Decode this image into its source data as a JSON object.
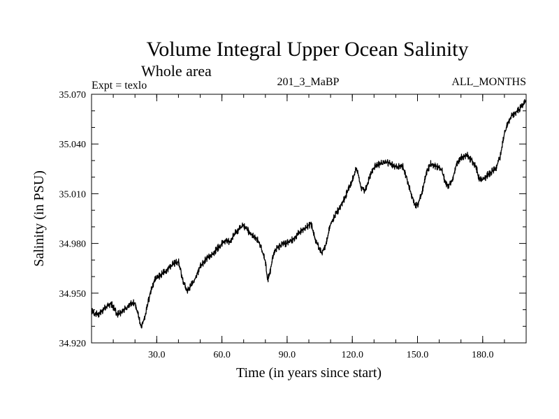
{
  "chart_data": {
    "type": "line",
    "title": "Volume Integral Upper Ocean Salinity",
    "subtitle": "Whole area",
    "annotations": {
      "left": "Expt = texlo",
      "center": "201_3_MaBP",
      "right": "ALL_MONTHS"
    },
    "xlabel": "Time (in years since start)",
    "ylabel": "Salinity (in PSU)",
    "xlim": [
      0,
      200
    ],
    "ylim": [
      34.92,
      35.07
    ],
    "x_ticks": [
      30,
      60,
      90,
      120,
      150,
      180
    ],
    "x_tick_labels": [
      "30.0",
      "60.0",
      "90.0",
      "120.0",
      "150.0",
      "180.0"
    ],
    "y_ticks": [
      34.92,
      34.95,
      34.98,
      35.01,
      35.04,
      35.07
    ],
    "y_tick_labels": [
      "34.920",
      "34.950",
      "34.980",
      "35.010",
      "35.040",
      "35.070"
    ],
    "grid": false,
    "noise_amplitude": 0.0022,
    "series": [
      {
        "name": "salinity",
        "x": [
          0,
          3,
          6,
          9,
          12,
          15,
          18,
          20,
          22,
          23,
          25,
          27,
          29,
          31,
          33,
          36,
          38,
          40,
          42,
          44,
          47,
          50,
          53,
          56,
          58,
          60,
          62,
          64,
          66,
          68,
          70,
          73,
          76,
          78,
          80,
          81,
          82,
          84,
          86,
          88,
          90,
          93,
          96,
          99,
          101,
          103,
          105,
          106,
          108,
          110,
          113,
          116,
          118,
          120,
          122,
          123,
          124,
          126,
          128,
          130,
          133,
          136,
          139,
          141,
          143,
          145,
          147,
          149,
          150,
          152,
          154,
          156,
          158,
          161,
          163,
          164,
          166,
          168,
          170,
          173,
          175,
          177,
          178,
          180,
          182,
          184,
          186,
          188,
          190,
          192,
          194,
          196,
          198,
          200
        ],
        "values": [
          34.939,
          34.937,
          34.941,
          34.944,
          34.937,
          34.94,
          34.944,
          34.944,
          34.934,
          34.929,
          34.938,
          34.95,
          34.958,
          34.96,
          34.962,
          34.966,
          34.968,
          34.969,
          34.958,
          34.951,
          34.957,
          34.966,
          34.971,
          34.974,
          34.977,
          34.98,
          34.982,
          34.981,
          34.986,
          34.989,
          34.991,
          34.986,
          34.983,
          34.978,
          34.969,
          34.958,
          34.962,
          34.975,
          34.978,
          34.98,
          34.98,
          34.983,
          34.987,
          34.99,
          34.992,
          34.982,
          34.976,
          34.974,
          34.98,
          34.992,
          34.999,
          35.006,
          35.012,
          35.018,
          35.026,
          35.02,
          35.014,
          35.012,
          35.02,
          35.026,
          35.028,
          35.029,
          35.027,
          35.026,
          35.027,
          35.02,
          35.01,
          35.003,
          35.003,
          35.01,
          35.022,
          35.028,
          35.027,
          35.025,
          35.016,
          35.015,
          35.018,
          35.028,
          35.032,
          35.033,
          35.03,
          35.026,
          35.02,
          35.018,
          35.021,
          35.023,
          35.025,
          35.032,
          35.046,
          35.054,
          35.058,
          35.06,
          35.063,
          35.066
        ]
      }
    ]
  }
}
